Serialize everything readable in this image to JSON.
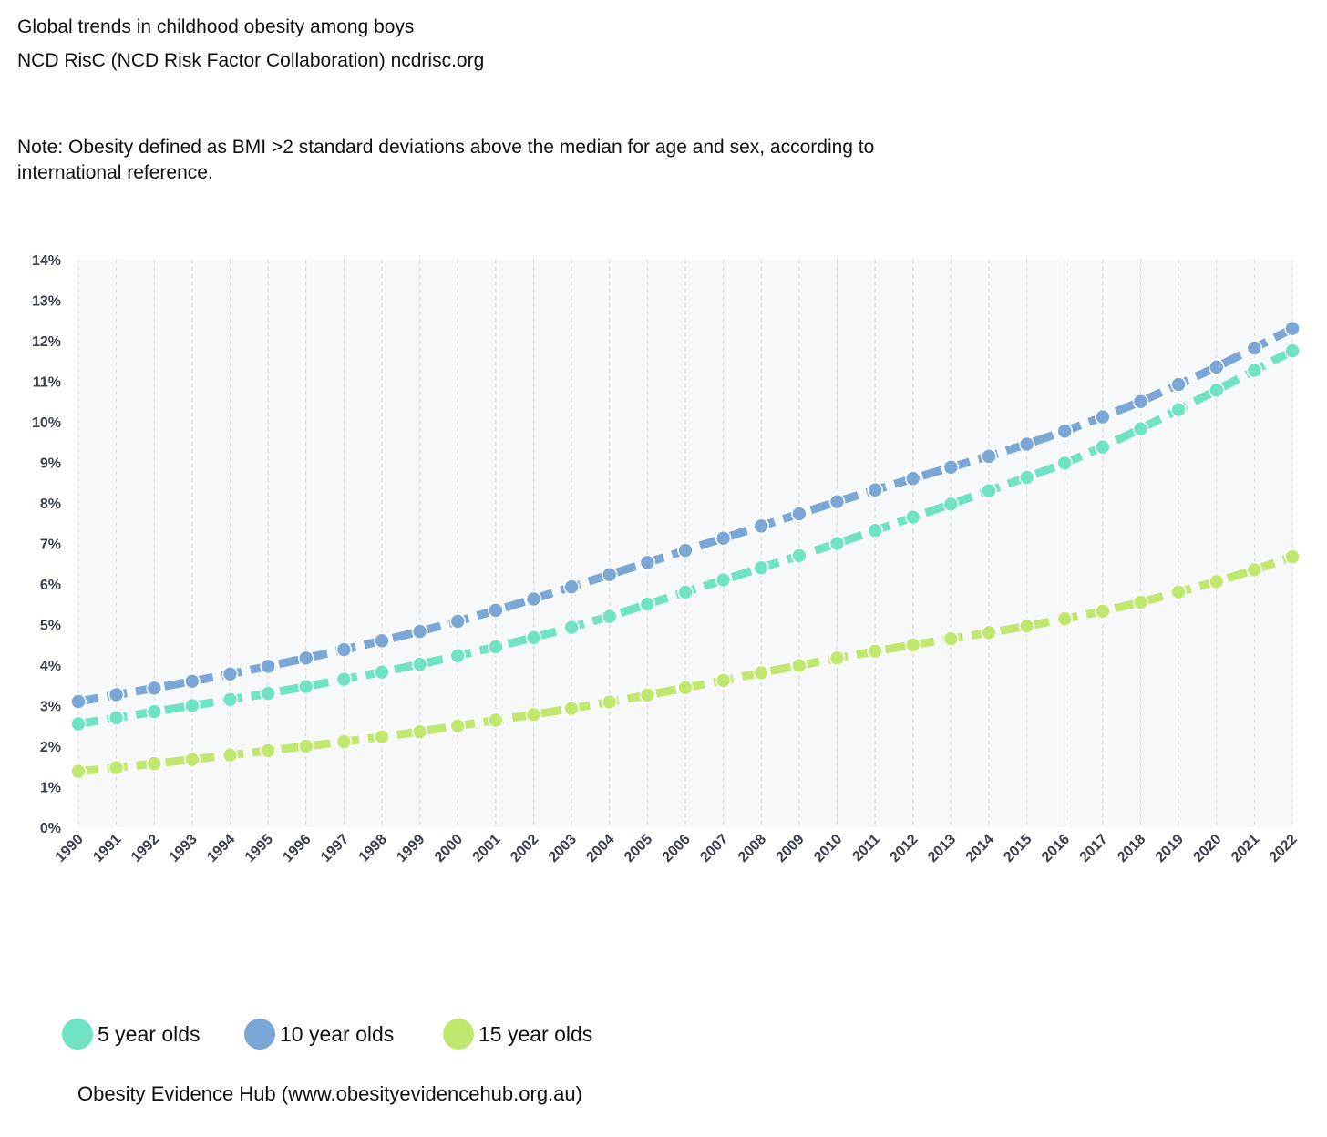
{
  "header": {
    "title": "Global trends in childhood obesity among boys",
    "source": "NCD RisC (NCD Risk Factor Collaboration) ncdrisc.org",
    "note": "Note: Obesity defined as BMI >2 standard deviations above the median for age and sex, according to international reference."
  },
  "chart_data": {
    "type": "line",
    "title": "",
    "xlabel": "",
    "ylabel": "",
    "x": [
      "1990",
      "1991",
      "1992",
      "1993",
      "1994",
      "1995",
      "1996",
      "1997",
      "1998",
      "1999",
      "2000",
      "2001",
      "2002",
      "2003",
      "2004",
      "2005",
      "2006",
      "2007",
      "2008",
      "2009",
      "2010",
      "2011",
      "2012",
      "2013",
      "2014",
      "2015",
      "2016",
      "2017",
      "2018",
      "2019",
      "2020",
      "2021",
      "2022"
    ],
    "y_ticks": [
      "0%",
      "1%",
      "2%",
      "3%",
      "4%",
      "5%",
      "6%",
      "7%",
      "8%",
      "9%",
      "10%",
      "11%",
      "12%",
      "13%",
      "14%"
    ],
    "ylim": [
      0,
      14
    ],
    "grid": "vertical dashed",
    "legend_position": "bottom",
    "series": [
      {
        "name": "5 year olds",
        "color": "#6fe3c3",
        "values": [
          2.55,
          2.7,
          2.85,
          3.0,
          3.15,
          3.3,
          3.47,
          3.65,
          3.83,
          4.02,
          4.23,
          4.45,
          4.68,
          4.93,
          5.2,
          5.5,
          5.8,
          6.1,
          6.4,
          6.7,
          7.0,
          7.32,
          7.65,
          7.97,
          8.3,
          8.63,
          8.98,
          9.38,
          9.83,
          10.3,
          10.78,
          11.27,
          11.75
        ]
      },
      {
        "name": "10 year olds",
        "color": "#7ba7d6",
        "values": [
          3.1,
          3.27,
          3.43,
          3.6,
          3.78,
          3.97,
          4.17,
          4.38,
          4.6,
          4.83,
          5.08,
          5.35,
          5.63,
          5.93,
          6.23,
          6.53,
          6.83,
          7.13,
          7.43,
          7.73,
          8.03,
          8.32,
          8.6,
          8.88,
          9.15,
          9.45,
          9.77,
          10.12,
          10.5,
          10.92,
          11.35,
          11.82,
          12.3
        ]
      },
      {
        "name": "15 year olds",
        "color": "#c0e86e",
        "values": [
          1.38,
          1.47,
          1.57,
          1.67,
          1.78,
          1.89,
          2.0,
          2.11,
          2.23,
          2.36,
          2.5,
          2.64,
          2.78,
          2.93,
          3.09,
          3.26,
          3.44,
          3.62,
          3.81,
          3.99,
          4.17,
          4.34,
          4.5,
          4.65,
          4.8,
          4.96,
          5.14,
          5.33,
          5.55,
          5.8,
          6.06,
          6.35,
          6.67
        ]
      }
    ]
  },
  "footer": {
    "credit": "Obesity Evidence Hub (www.obesityevidencehub.org.au)"
  }
}
